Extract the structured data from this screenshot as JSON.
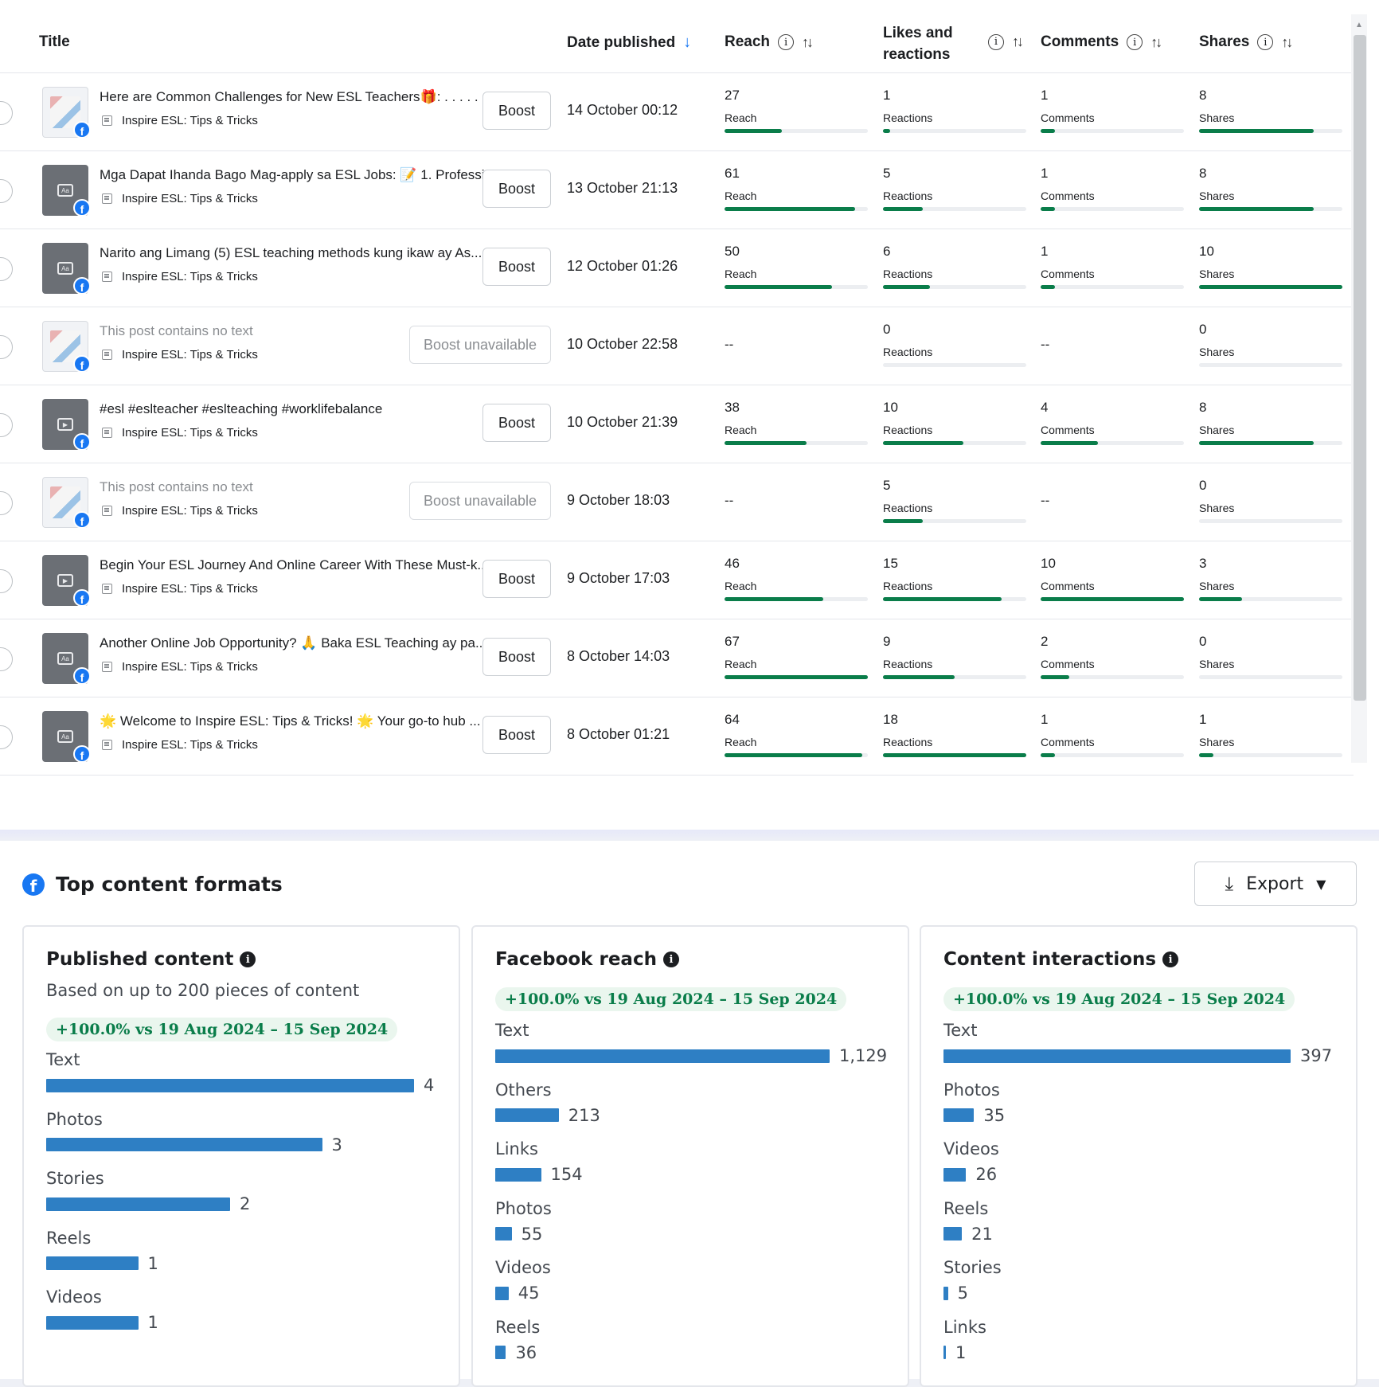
{
  "table": {
    "headers": {
      "title": "Title",
      "date": "Date published",
      "reach": "Reach",
      "likes_line1": "Likes and",
      "likes_line2": "reactions",
      "comments": "Comments",
      "shares": "Shares"
    },
    "rows": [
      {
        "title": "Here are Common Challenges for New ESL Teachers🎁: . . . . . ...",
        "page": "Inspire ESL: Tips & Tricks",
        "boost": "Boost",
        "boost_available": true,
        "date": "14 October 00:12",
        "reach": "27",
        "reach_label": "Reach",
        "reach_fraction": 0.4,
        "reactions": "1",
        "reactions_label": "Reactions",
        "reactions_fraction": 0.05,
        "comments": "1",
        "comments_label": "Comments",
        "comments_fraction": 0.1,
        "shares": "8",
        "shares_label": "Shares",
        "shares_fraction": 0.8,
        "thumb": "photo"
      },
      {
        "title": "Mga Dapat Ihanda Bago Mag-apply sa ESL Jobs: 📝 1. Professi...",
        "page": "Inspire ESL: Tips & Tricks",
        "boost": "Boost",
        "boost_available": true,
        "date": "13 October 21:13",
        "reach": "61",
        "reach_label": "Reach",
        "reach_fraction": 0.91,
        "reactions": "5",
        "reactions_label": "Reactions",
        "reactions_fraction": 0.28,
        "comments": "1",
        "comments_label": "Comments",
        "comments_fraction": 0.1,
        "shares": "8",
        "shares_label": "Shares",
        "shares_fraction": 0.8,
        "thumb": "text"
      },
      {
        "title": "Narito ang Limang (5) ESL teaching methods kung ikaw ay As...",
        "page": "Inspire ESL: Tips & Tricks",
        "boost": "Boost",
        "boost_available": true,
        "date": "12 October 01:26",
        "reach": "50",
        "reach_label": "Reach",
        "reach_fraction": 0.75,
        "reactions": "6",
        "reactions_label": "Reactions",
        "reactions_fraction": 0.33,
        "comments": "1",
        "comments_label": "Comments",
        "comments_fraction": 0.1,
        "shares": "10",
        "shares_label": "Shares",
        "shares_fraction": 1.0,
        "thumb": "text"
      },
      {
        "title": "This post contains no text",
        "muted": true,
        "page": "Inspire ESL: Tips & Tricks",
        "boost": "Boost unavailable",
        "boost_available": false,
        "date": "10 October 22:58",
        "reach": "--",
        "reach_label": "",
        "reach_fraction": null,
        "reactions": "0",
        "reactions_label": "Reactions",
        "reactions_fraction": 0,
        "comments": "--",
        "comments_label": "",
        "comments_fraction": null,
        "shares": "0",
        "shares_label": "Shares",
        "shares_fraction": 0,
        "thumb": "photo"
      },
      {
        "title": "#esl #eslteacher #eslteaching #worklifebalance",
        "page": "Inspire ESL: Tips & Tricks",
        "boost": "Boost",
        "boost_available": true,
        "date": "10 October 21:39",
        "reach": "38",
        "reach_label": "Reach",
        "reach_fraction": 0.57,
        "reactions": "10",
        "reactions_label": "Reactions",
        "reactions_fraction": 0.56,
        "comments": "4",
        "comments_label": "Comments",
        "comments_fraction": 0.4,
        "shares": "8",
        "shares_label": "Shares",
        "shares_fraction": 0.8,
        "thumb": "video"
      },
      {
        "title": "This post contains no text",
        "muted": true,
        "page": "Inspire ESL: Tips & Tricks",
        "boost": "Boost unavailable",
        "boost_available": false,
        "date": "9 October 18:03",
        "reach": "--",
        "reach_label": "",
        "reach_fraction": null,
        "reactions": "5",
        "reactions_label": "Reactions",
        "reactions_fraction": 0.28,
        "comments": "--",
        "comments_label": "",
        "comments_fraction": null,
        "shares": "0",
        "shares_label": "Shares",
        "shares_fraction": 0,
        "thumb": "photo"
      },
      {
        "title": "Begin Your ESL Journey And Online Career With These Must-k...",
        "page": "Inspire ESL: Tips & Tricks",
        "boost": "Boost",
        "boost_available": true,
        "date": "9 October 17:03",
        "reach": "46",
        "reach_label": "Reach",
        "reach_fraction": 0.69,
        "reactions": "15",
        "reactions_label": "Reactions",
        "reactions_fraction": 0.83,
        "comments": "10",
        "comments_label": "Comments",
        "comments_fraction": 1.0,
        "shares": "3",
        "shares_label": "Shares",
        "shares_fraction": 0.3,
        "thumb": "video"
      },
      {
        "title": "Another Online Job Opportunity? 🙏 Baka ESL Teaching ay pa...",
        "page": "Inspire ESL: Tips & Tricks",
        "boost": "Boost",
        "boost_available": true,
        "date": "8 October 14:03",
        "reach": "67",
        "reach_label": "Reach",
        "reach_fraction": 1.0,
        "reactions": "9",
        "reactions_label": "Reactions",
        "reactions_fraction": 0.5,
        "comments": "2",
        "comments_label": "Comments",
        "comments_fraction": 0.2,
        "shares": "0",
        "shares_label": "Shares",
        "shares_fraction": 0,
        "thumb": "text"
      },
      {
        "title": "🌟 Welcome to Inspire ESL: Tips & Tricks! 🌟 Your go-to hub ...",
        "page": "Inspire ESL: Tips & Tricks",
        "boost": "Boost",
        "boost_available": true,
        "date": "8 October 01:21",
        "reach": "64",
        "reach_label": "Reach",
        "reach_fraction": 0.96,
        "reactions": "18",
        "reactions_label": "Reactions",
        "reactions_fraction": 1.0,
        "comments": "1",
        "comments_label": "Comments",
        "comments_fraction": 0.1,
        "shares": "1",
        "shares_label": "Shares",
        "shares_fraction": 0.1,
        "thumb": "text"
      }
    ]
  },
  "formats": {
    "title": "Top content formats",
    "export_label": "Export",
    "cards": [
      {
        "title": "Published content",
        "subtitle": "Based on up to 200 pieces of content",
        "delta": "+100.0% vs 19 Aug 2024 – 15 Sep 2024",
        "items": [
          {
            "label": "Text",
            "value": "4",
            "fraction": 1.0
          },
          {
            "label": "Photos",
            "value": "3",
            "fraction": 0.75
          },
          {
            "label": "Stories",
            "value": "2",
            "fraction": 0.5
          },
          {
            "label": "Reels",
            "value": "1",
            "fraction": 0.25
          },
          {
            "label": "Videos",
            "value": "1",
            "fraction": 0.25
          }
        ]
      },
      {
        "title": "Facebook reach",
        "subtitle": "",
        "delta": "+100.0% vs 19 Aug 2024 – 15 Sep 2024",
        "items": [
          {
            "label": "Text",
            "value": "1,129",
            "fraction": 1.0
          },
          {
            "label": "Others",
            "value": "213",
            "fraction": 0.19
          },
          {
            "label": "Links",
            "value": "154",
            "fraction": 0.137
          },
          {
            "label": "Photos",
            "value": "55",
            "fraction": 0.049
          },
          {
            "label": "Videos",
            "value": "45",
            "fraction": 0.04
          },
          {
            "label": "Reels",
            "value": "36",
            "fraction": 0.032
          }
        ]
      },
      {
        "title": "Content interactions",
        "subtitle": "",
        "delta": "+100.0% vs 19 Aug 2024 – 15 Sep 2024",
        "items": [
          {
            "label": "Text",
            "value": "397",
            "fraction": 1.0
          },
          {
            "label": "Photos",
            "value": "35",
            "fraction": 0.088
          },
          {
            "label": "Videos",
            "value": "26",
            "fraction": 0.065
          },
          {
            "label": "Reels",
            "value": "21",
            "fraction": 0.053
          },
          {
            "label": "Stories",
            "value": "5",
            "fraction": 0.013
          },
          {
            "label": "Links",
            "value": "1",
            "fraction": 0.003
          }
        ]
      }
    ]
  },
  "colors": {
    "accent_blue": "#1877f2",
    "bar_blue": "#2e7fc4",
    "metric_green": "#0a7d4a",
    "pill_bg": "#eaf6ee"
  }
}
